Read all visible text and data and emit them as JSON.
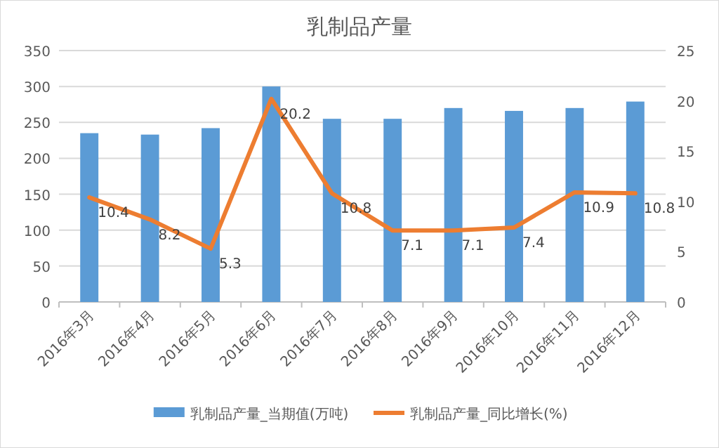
{
  "chart_data": {
    "type": "bar",
    "title": "乳制品产量",
    "categories": [
      "2016年3月",
      "2016年4月",
      "2016年5月",
      "2016年6月",
      "2016年7月",
      "2016年8月",
      "2016年9月",
      "2016年10月",
      "2016年11月",
      "2016年12月"
    ],
    "series": [
      {
        "name": "乳制品产量_当期值(万吨)",
        "color": "#5b9bd5",
        "values": [
          235,
          233,
          242,
          300,
          255,
          255,
          270,
          266,
          270,
          279
        ]
      },
      {
        "name": "乳制品产量_同比增长(%)",
        "type": "line",
        "axis": "y2",
        "color": "#ed7d31",
        "values": [
          10.4,
          8.2,
          5.3,
          20.2,
          10.8,
          7.1,
          7.1,
          7.4,
          10.9,
          10.8
        ],
        "value_labels": [
          "10.4",
          "8.2",
          "5.3",
          "20.2",
          "10.8",
          "7.1",
          "7.1",
          "7.4",
          "10.9",
          "10.8"
        ]
      }
    ],
    "ylim": [
      0,
      350
    ],
    "yticks": [
      0,
      50,
      100,
      150,
      200,
      250,
      300,
      350
    ],
    "y2lim": [
      0,
      25
    ],
    "y2ticks": [
      0,
      5,
      10,
      15,
      20,
      25
    ],
    "grid": "y",
    "legend": "bottom"
  }
}
